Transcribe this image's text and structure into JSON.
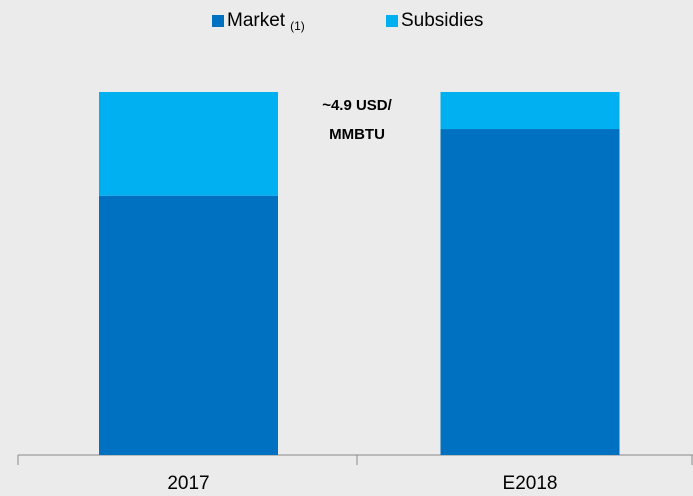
{
  "chart_data": {
    "type": "stacked_bar",
    "categories": [
      "2017",
      "E2018"
    ],
    "series": [
      {
        "name": "Market",
        "name_note": "(1)",
        "color": "#0070c0",
        "values": [
          3.5,
          4.4
        ]
      },
      {
        "name": "Subsidies",
        "color": "#00b0f0",
        "values": [
          1.4,
          0.5
        ]
      }
    ],
    "annotation": [
      "~4.9 USD/",
      "MMBTU"
    ]
  }
}
